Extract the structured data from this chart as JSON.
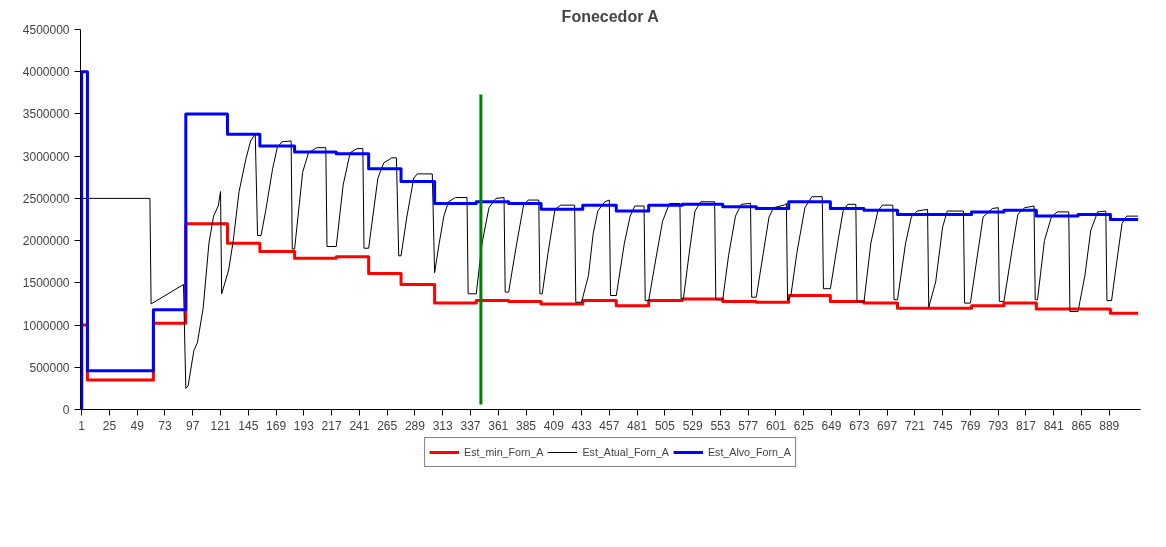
{
  "chart_data": {
    "type": "line",
    "title": "Fonecedor A",
    "xlim": [
      0,
      916
    ],
    "xticks": [
      1,
      25,
      49,
      73,
      97,
      121,
      145,
      169,
      193,
      217,
      241,
      265,
      289,
      313,
      337,
      361,
      385,
      409,
      433,
      457,
      481,
      505,
      529,
      553,
      577,
      601,
      625,
      649,
      673,
      697,
      721,
      745,
      769,
      793,
      817,
      841,
      865,
      889
    ],
    "ylim": [
      0,
      4500000
    ],
    "yticks": [
      0,
      500000,
      1000000,
      1500000,
      2000000,
      2500000,
      3000000,
      3500000,
      4000000,
      4500000
    ],
    "grid": false,
    "legend": "bottom",
    "marker": "none",
    "line_style": "solid",
    "series": [
      {
        "name": "Est_min_Forn_A",
        "type": "step",
        "color": "#ff0000",
        "x": [
          1,
          1,
          6,
          63,
          91,
          127,
          155,
          185,
          221,
          249,
          277,
          306,
          342,
          370,
          398,
          434,
          463,
          491,
          520,
          555,
          584,
          612,
          648,
          677,
          706,
          770,
          798,
          826,
          890,
          914
        ],
        "values": [
          0,
          1000000,
          350000,
          1020000,
          2200000,
          1970000,
          1870000,
          1790000,
          1810000,
          1610000,
          1480000,
          1260000,
          1290000,
          1280000,
          1250000,
          1290000,
          1230000,
          1290000,
          1310000,
          1280000,
          1270000,
          1350000,
          1280000,
          1260000,
          1200000,
          1230000,
          1260000,
          1190000,
          1140000,
          1140000
        ]
      },
      {
        "name": "Est_Atual_Forn_A",
        "color": "#000000",
        "x": [
          1,
          60,
          61,
          89,
          91,
          93,
          98,
          101,
          106,
          111,
          115,
          119,
          121,
          122,
          128,
          132,
          137,
          143,
          147,
          151,
          153,
          156,
          160,
          166,
          170,
          174,
          182,
          183,
          185,
          192,
          197,
          204,
          212,
          213,
          221,
          227,
          233,
          239,
          244,
          245,
          249,
          257,
          262,
          269,
          273,
          275,
          277,
          282,
          288,
          291,
          304,
          306,
          310,
          314,
          318,
          324,
          334,
          335,
          342,
          347,
          353,
          359,
          366,
          367,
          370,
          376,
          383,
          387,
          396,
          397,
          399,
          404,
          410,
          415,
          427,
          428,
          433,
          439,
          443,
          447,
          453,
          457,
          458,
          463,
          470,
          475,
          479,
          487,
          488,
          491,
          497,
          503,
          509,
          518,
          519,
          521,
          526,
          531,
          536,
          548,
          549,
          555,
          560,
          566,
          571,
          579,
          580,
          584,
          590,
          595,
          599,
          608,
          610,
          611,
          614,
          619,
          626,
          632,
          641,
          642,
          648,
          655,
          659,
          663,
          670,
          671,
          677,
          683,
          689,
          693,
          702,
          703,
          706,
          713,
          718,
          723,
          732,
          733,
          739,
          745,
          749,
          763,
          764,
          769,
          775,
          780,
          788,
          793,
          794,
          798,
          805,
          810,
          816,
          824,
          825,
          827,
          833,
          839,
          844,
          854,
          855,
          862,
          868,
          873,
          879,
          886,
          887,
          891,
          895,
          900,
          904,
          914
        ],
        "values": [
          2500000,
          2500000,
          1250000,
          1480000,
          250000,
          280000,
          700000,
          790000,
          1200000,
          1970000,
          2290000,
          2410000,
          2580000,
          1370000,
          1650000,
          2000000,
          2580000,
          2970000,
          3180000,
          3260000,
          2060000,
          2060000,
          2350000,
          2850000,
          3100000,
          3170000,
          3180000,
          1900000,
          1900000,
          2810000,
          3040000,
          3100000,
          3100000,
          1930000,
          1930000,
          2660000,
          3040000,
          3090000,
          3090000,
          1910000,
          1910000,
          2740000,
          2920000,
          2980000,
          2980000,
          1820000,
          1820000,
          2280000,
          2740000,
          2790000,
          2790000,
          1620000,
          1970000,
          2290000,
          2460000,
          2510000,
          2510000,
          1370000,
          1370000,
          1970000,
          2390000,
          2500000,
          2510000,
          1390000,
          1390000,
          1890000,
          2430000,
          2480000,
          2480000,
          1370000,
          1370000,
          1850000,
          2370000,
          2420000,
          2420000,
          1270000,
          1270000,
          1590000,
          2080000,
          2350000,
          2460000,
          2480000,
          1350000,
          1350000,
          1970000,
          2290000,
          2410000,
          2410000,
          1290000,
          1290000,
          1770000,
          2230000,
          2440000,
          2440000,
          1310000,
          1310000,
          1850000,
          2350000,
          2460000,
          2460000,
          1300000,
          1300000,
          1820000,
          2290000,
          2430000,
          2440000,
          1330000,
          1330000,
          1850000,
          2280000,
          2390000,
          2420000,
          2440000,
          1290000,
          1360000,
          1850000,
          2390000,
          2520000,
          2520000,
          1430000,
          1430000,
          2030000,
          2350000,
          2430000,
          2430000,
          1280000,
          1270000,
          1970000,
          2350000,
          2420000,
          2420000,
          1300000,
          1300000,
          1970000,
          2280000,
          2350000,
          2370000,
          1210000,
          1510000,
          2160000,
          2350000,
          2350000,
          1260000,
          1260000,
          1820000,
          2280000,
          2380000,
          2390000,
          1280000,
          1280000,
          1890000,
          2310000,
          2390000,
          2410000,
          1300000,
          1300000,
          2000000,
          2280000,
          2340000,
          2340000,
          1160000,
          1160000,
          1590000,
          2120000,
          2340000,
          2350000,
          1290000,
          1290000,
          1700000,
          2200000,
          2290000,
          2290000
        ]
      },
      {
        "name": "Est_Alvo_Forn_A",
        "type": "step",
        "color": "#0000ff",
        "x": [
          1,
          1,
          6,
          63,
          91,
          127,
          155,
          185,
          221,
          249,
          277,
          306,
          342,
          370,
          398,
          434,
          463,
          491,
          520,
          555,
          584,
          612,
          648,
          677,
          706,
          770,
          798,
          826,
          862,
          890,
          914
        ],
        "values": [
          0,
          4000000,
          460000,
          1180000,
          3500000,
          3260000,
          3120000,
          3050000,
          3030000,
          2850000,
          2700000,
          2440000,
          2460000,
          2440000,
          2370000,
          2420000,
          2350000,
          2420000,
          2430000,
          2400000,
          2380000,
          2460000,
          2380000,
          2360000,
          2310000,
          2340000,
          2360000,
          2290000,
          2310000,
          2250000,
          2250000
        ]
      },
      {
        "color": "#008000",
        "x": [
          346,
          346
        ],
        "values": [
          60000,
          3730000
        ]
      }
    ]
  }
}
